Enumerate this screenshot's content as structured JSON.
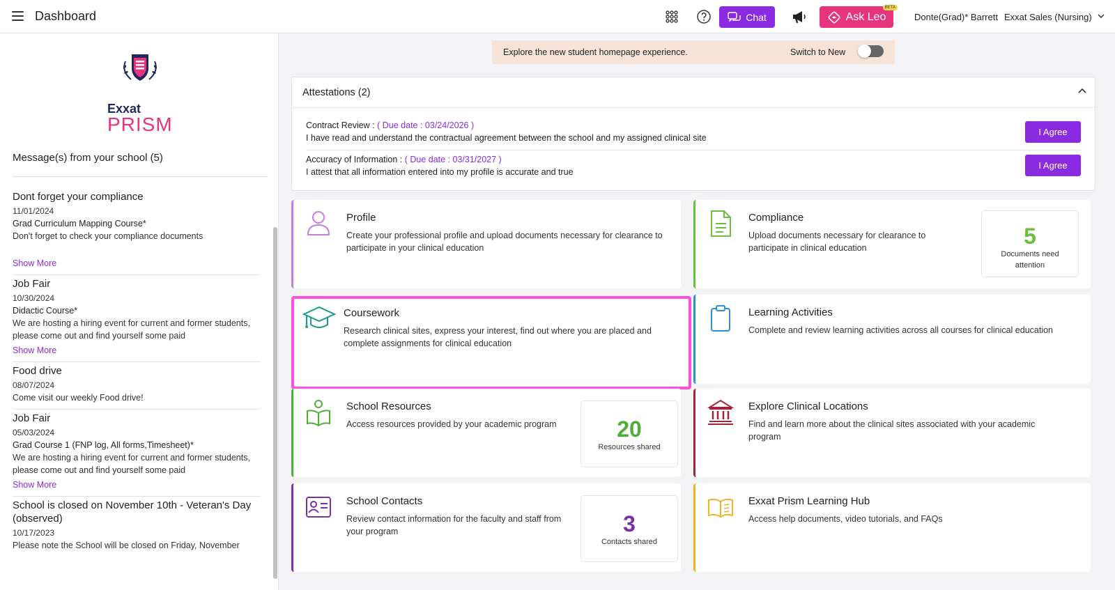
{
  "header": {
    "page_title": "Dashboard",
    "chat_label": "Chat",
    "ask_leo_label": "Ask Leo",
    "beta_badge": "BETA",
    "user_name": "Donte(Grad)* Barrett",
    "account": "Exxat Sales (Nursing)"
  },
  "sidebar": {
    "logo_text": "Exxat",
    "logo_product": "PRISM",
    "messages_header": "Message(s) from your school (5)",
    "show_more_label": "Show More",
    "messages": [
      {
        "title": "Dont forget your compliance",
        "date": "11/01/2024",
        "course": "Grad Curriculum Mapping Course*",
        "body": "Don't forget to check your compliance documents"
      },
      {
        "title": "Job Fair",
        "date": "10/30/2024",
        "course": "Didactic Course*",
        "body": "We are hosting a hiring event for current and former students, please come out and find yourself some paid"
      },
      {
        "title": "Food drive",
        "date": "08/07/2024",
        "course": "",
        "body": "Come visit our weekly Food drive!"
      },
      {
        "title": "Job Fair",
        "date": "05/03/2024",
        "course": "Grad Course 1 (FNP log, All forms,Timesheet)*",
        "body": "We are hosting a hiring event for current and former students, please come out and find yourself some paid"
      },
      {
        "title": "School is closed on November 10th - Veteran's Day (observed)",
        "date": "10/17/2023",
        "course": "",
        "body": "Please note the School will be closed on Friday, November"
      }
    ]
  },
  "banner": {
    "text": "Explore the new student homepage experience.",
    "switch_label": "Switch to New"
  },
  "attestations": {
    "header": "Attestations (2)",
    "agree_label": "I Agree",
    "items": [
      {
        "title": "Contract Review : ",
        "due": "( Due date : 03/24/2026 )",
        "desc": "I have read and understand the contractual agreement between the school and my assigned clinical site"
      },
      {
        "title": "Accuracy of Information : ",
        "due": "( Due date : 03/31/2027 )",
        "desc": "I attest that all information entered into my profile is accurate and true"
      }
    ]
  },
  "cards": {
    "profile": {
      "title": "Profile",
      "desc": "Create your professional profile and upload documents necessary for clearance to participate in your clinical education",
      "accent": "#c77dde"
    },
    "compliance": {
      "title": "Compliance",
      "desc": "Upload documents necessary for clearance to participate in clinical education",
      "accent": "#6cbf3c",
      "stat": "5",
      "stat_label": "Documents need attention"
    },
    "coursework": {
      "title": "Coursework",
      "desc": "Research clinical sites, express your interest, find out where you are placed and complete assignments for clinical education",
      "accent": "#1b9a8c"
    },
    "learning": {
      "title": "Learning Activities",
      "desc": "Complete and review learning activities across all courses for clinical education",
      "accent": "#2b8fd6"
    },
    "resources": {
      "title": "School Resources",
      "desc": "Access resources provided by your academic program",
      "accent": "#4fae3a",
      "stat": "20",
      "stat_label": "Resources shared"
    },
    "locations": {
      "title": "Explore Clinical Locations",
      "desc": "Find and learn more about the clinical sites associated with your academic program",
      "accent": "#a3233a"
    },
    "contacts": {
      "title": "School Contacts",
      "desc": "Review contact information for the faculty and staff from your program",
      "accent": "#7b2fa8",
      "stat": "3",
      "stat_label": "Contacts shared"
    },
    "hub": {
      "title": "Exxat Prism Learning Hub",
      "desc": "Access help documents, video tutorials, and FAQs",
      "accent": "#f0b323"
    }
  },
  "colors": {
    "primary": "#8a2be2",
    "leo": "#e8337d",
    "highlight": "#ff4fe0"
  }
}
